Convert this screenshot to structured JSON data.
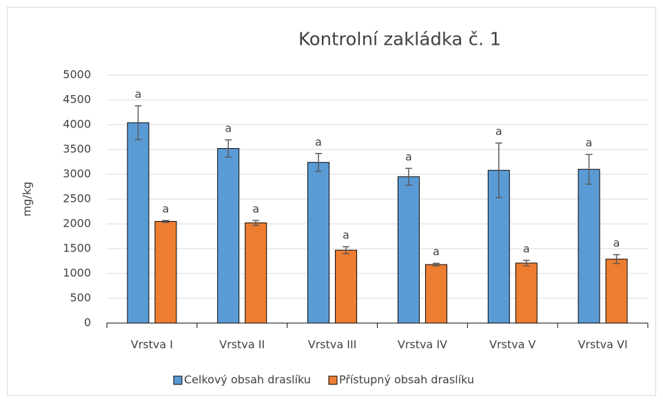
{
  "chart_data": {
    "type": "bar",
    "title": "Kontrolní zakládka č. 1",
    "y_label": "mg/kg",
    "categories": [
      "Vrstva I",
      "Vrstva II",
      "Vrstva III",
      "Vrstva IV",
      "Vrstva V",
      "Vrstva VI"
    ],
    "series": [
      {
        "name": "Celkový obsah draslíku",
        "color": "#5b9bd5",
        "values": [
          4040,
          3520,
          3240,
          2950,
          3080,
          3100
        ],
        "errors": [
          340,
          175,
          180,
          170,
          550,
          300
        ],
        "labels": [
          "a",
          "a",
          "a",
          "a",
          "a",
          "a"
        ]
      },
      {
        "name": "Přístupný obsah draslíku",
        "color": "#ed7d31",
        "values": [
          2050,
          2020,
          1470,
          1180,
          1210,
          1290
        ],
        "errors": [
          20,
          50,
          70,
          25,
          55,
          90
        ],
        "labels": [
          "a",
          "a",
          "a",
          "a",
          "a",
          "a"
        ]
      }
    ],
    "ylim": [
      0,
      5000
    ],
    "yticks": [
      0,
      500,
      1000,
      1500,
      2000,
      2500,
      3000,
      3500,
      4000,
      4500,
      5000
    ],
    "grid": true,
    "legend": "bottom"
  }
}
